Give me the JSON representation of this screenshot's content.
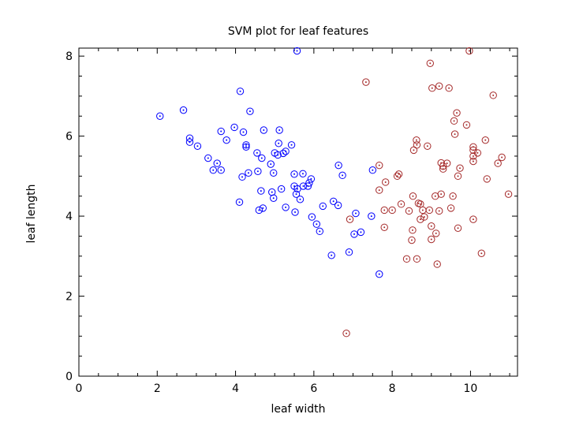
{
  "chart_data": {
    "type": "scatter",
    "title": "SVM plot for leaf features",
    "xlabel": "leaf width",
    "ylabel": "leaf length",
    "xlim": [
      0,
      11.2
    ],
    "ylim": [
      0,
      8.2
    ],
    "xticks": [
      0,
      2,
      4,
      6,
      8,
      10
    ],
    "yticks": [
      0,
      2,
      4,
      6,
      8
    ],
    "grid": false,
    "legend": "none",
    "marker": "circle-with-dot",
    "series": [
      {
        "color": "#0000ff",
        "points": [
          [
            2.07,
            6.5
          ],
          [
            2.67,
            6.65
          ],
          [
            2.83,
            5.95
          ],
          [
            2.83,
            5.85
          ],
          [
            3.03,
            5.75
          ],
          [
            3.3,
            5.45
          ],
          [
            3.43,
            5.15
          ],
          [
            3.53,
            5.32
          ],
          [
            3.63,
            5.15
          ],
          [
            3.63,
            6.12
          ],
          [
            3.77,
            5.9
          ],
          [
            3.97,
            6.22
          ],
          [
            4.1,
            4.35
          ],
          [
            4.12,
            7.12
          ],
          [
            4.17,
            4.98
          ],
          [
            4.2,
            6.1
          ],
          [
            4.27,
            5.78
          ],
          [
            4.27,
            5.73
          ],
          [
            4.33,
            5.08
          ],
          [
            4.37,
            6.62
          ],
          [
            4.55,
            5.58
          ],
          [
            4.57,
            5.12
          ],
          [
            4.6,
            4.15
          ],
          [
            4.65,
            4.63
          ],
          [
            4.67,
            5.45
          ],
          [
            4.7,
            4.2
          ],
          [
            4.72,
            6.15
          ],
          [
            4.9,
            5.3
          ],
          [
            4.93,
            4.6
          ],
          [
            4.97,
            4.45
          ],
          [
            4.97,
            5.08
          ],
          [
            5.0,
            5.58
          ],
          [
            5.08,
            5.53
          ],
          [
            5.1,
            5.82
          ],
          [
            5.12,
            6.15
          ],
          [
            5.17,
            4.68
          ],
          [
            5.22,
            5.57
          ],
          [
            5.28,
            4.22
          ],
          [
            5.28,
            5.62
          ],
          [
            5.43,
            5.78
          ],
          [
            5.5,
            5.05
          ],
          [
            5.5,
            4.75
          ],
          [
            5.52,
            4.1
          ],
          [
            5.55,
            4.55
          ],
          [
            5.57,
            8.13
          ],
          [
            5.58,
            4.68
          ],
          [
            5.65,
            4.42
          ],
          [
            5.72,
            5.06
          ],
          [
            5.73,
            4.75
          ],
          [
            5.85,
            4.75
          ],
          [
            5.88,
            4.83
          ],
          [
            5.93,
            4.93
          ],
          [
            5.95,
            3.98
          ],
          [
            6.07,
            3.8
          ],
          [
            6.15,
            3.62
          ],
          [
            6.23,
            4.25
          ],
          [
            6.45,
            3.02
          ],
          [
            6.5,
            4.37
          ],
          [
            6.62,
            4.27
          ],
          [
            6.63,
            5.27
          ],
          [
            6.73,
            5.02
          ],
          [
            6.9,
            3.1
          ],
          [
            7.03,
            3.55
          ],
          [
            7.07,
            4.07
          ],
          [
            7.2,
            3.6
          ],
          [
            7.47,
            4.0
          ],
          [
            7.5,
            5.15
          ],
          [
            7.67,
            2.55
          ]
        ]
      },
      {
        "color": "#a52a2a",
        "points": [
          [
            6.83,
            1.07
          ],
          [
            6.92,
            3.92
          ],
          [
            7.33,
            7.35
          ],
          [
            7.67,
            5.27
          ],
          [
            7.67,
            4.65
          ],
          [
            7.8,
            3.72
          ],
          [
            7.8,
            4.15
          ],
          [
            7.83,
            4.85
          ],
          [
            8.0,
            4.15
          ],
          [
            8.13,
            5.0
          ],
          [
            8.17,
            5.05
          ],
          [
            8.23,
            4.3
          ],
          [
            8.37,
            2.93
          ],
          [
            8.43,
            4.13
          ],
          [
            8.5,
            3.4
          ],
          [
            8.52,
            3.65
          ],
          [
            8.53,
            4.5
          ],
          [
            8.55,
            5.65
          ],
          [
            8.62,
            5.9
          ],
          [
            8.63,
            5.78
          ],
          [
            8.63,
            2.93
          ],
          [
            8.67,
            4.32
          ],
          [
            8.72,
            4.3
          ],
          [
            8.72,
            3.92
          ],
          [
            8.78,
            4.15
          ],
          [
            8.82,
            3.98
          ],
          [
            8.9,
            5.75
          ],
          [
            8.95,
            4.15
          ],
          [
            8.97,
            7.82
          ],
          [
            9.0,
            3.75
          ],
          [
            9.0,
            3.42
          ],
          [
            9.02,
            7.2
          ],
          [
            9.1,
            4.5
          ],
          [
            9.12,
            3.57
          ],
          [
            9.15,
            2.8
          ],
          [
            9.2,
            4.13
          ],
          [
            9.2,
            7.25
          ],
          [
            9.25,
            4.55
          ],
          [
            9.25,
            5.33
          ],
          [
            9.3,
            5.18
          ],
          [
            9.3,
            5.25
          ],
          [
            9.4,
            5.32
          ],
          [
            9.45,
            7.2
          ],
          [
            9.5,
            4.2
          ],
          [
            9.55,
            4.5
          ],
          [
            9.58,
            6.38
          ],
          [
            9.6,
            6.05
          ],
          [
            9.65,
            6.58
          ],
          [
            9.68,
            3.7
          ],
          [
            9.68,
            5.0
          ],
          [
            9.73,
            5.2
          ],
          [
            9.9,
            6.28
          ],
          [
            9.97,
            8.13
          ],
          [
            10.07,
            5.73
          ],
          [
            10.07,
            5.65
          ],
          [
            10.07,
            5.5
          ],
          [
            10.07,
            5.37
          ],
          [
            10.07,
            3.92
          ],
          [
            10.18,
            5.58
          ],
          [
            10.28,
            3.07
          ],
          [
            10.38,
            5.9
          ],
          [
            10.42,
            4.93
          ],
          [
            10.58,
            7.02
          ],
          [
            10.7,
            5.32
          ],
          [
            10.8,
            5.47
          ],
          [
            10.97,
            4.55
          ]
        ]
      }
    ]
  }
}
